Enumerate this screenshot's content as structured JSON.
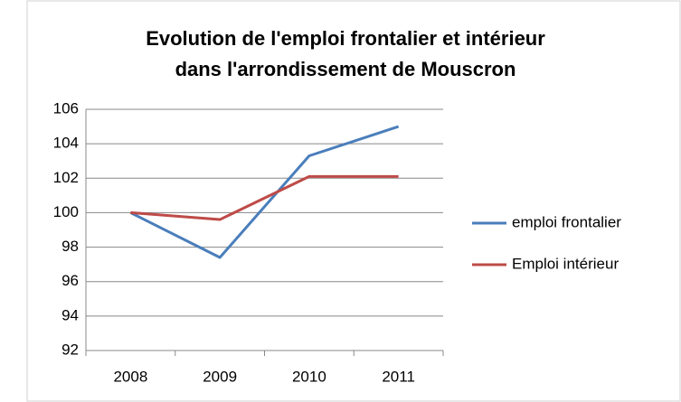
{
  "chart_data": {
    "type": "line",
    "title": [
      "Evolution de l'emploi frontalier et intérieur",
      "dans l'arrondissement de Mouscron"
    ],
    "categories": [
      "2008",
      "2009",
      "2010",
      "2011"
    ],
    "series": [
      {
        "name": "emploi frontalier",
        "color": "#4a7ebb",
        "values": [
          100,
          97.4,
          103.3,
          105.0
        ]
      },
      {
        "name": "Emploi intérieur",
        "color": "#be4b48",
        "values": [
          100,
          99.6,
          102.1,
          102.1
        ]
      }
    ],
    "ylim": [
      92,
      106
    ],
    "yticks": [
      92,
      94,
      96,
      98,
      100,
      102,
      104,
      106
    ],
    "grid": true,
    "legend": "right"
  }
}
